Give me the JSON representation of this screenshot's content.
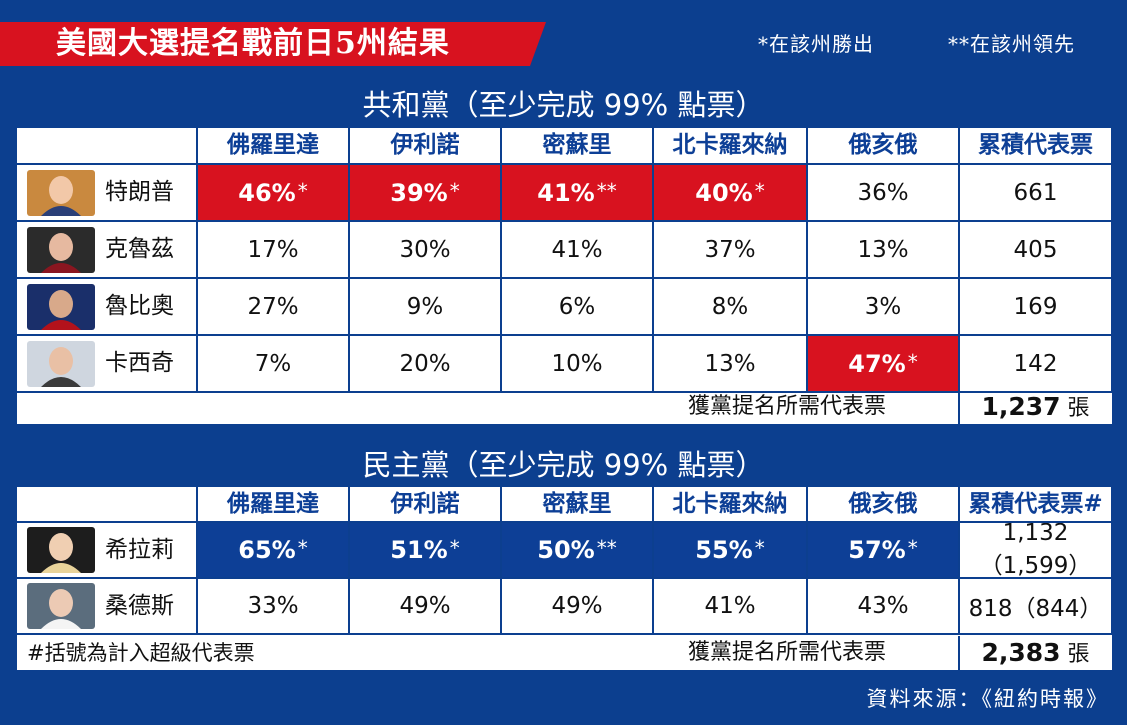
{
  "banner": {
    "title": "美國大選提名戰前日5州結果",
    "legend_win": "*在該州勝出",
    "legend_lead": "**在該州領先"
  },
  "republican": {
    "title": "共和黨（至少完成 99% 點票）",
    "headers": [
      "佛羅里達",
      "伊利諾",
      "密蘇里",
      "北卡羅來納",
      "俄亥俄",
      "累積代表票"
    ],
    "rows": [
      {
        "name": "特朗普",
        "photo": "trump-photo",
        "cells": [
          {
            "v": "46%",
            "s": "*",
            "win": true
          },
          {
            "v": "39%",
            "s": "*",
            "win": true
          },
          {
            "v": "41%",
            "s": "**",
            "win": true
          },
          {
            "v": "40%",
            "s": "*",
            "win": true
          },
          {
            "v": "36%",
            "s": "",
            "win": false
          }
        ],
        "total": "661"
      },
      {
        "name": "克魯茲",
        "photo": "cruz-photo",
        "cells": [
          {
            "v": "17%",
            "s": "",
            "win": false
          },
          {
            "v": "30%",
            "s": "",
            "win": false
          },
          {
            "v": "41%",
            "s": "",
            "win": false
          },
          {
            "v": "37%",
            "s": "",
            "win": false
          },
          {
            "v": "13%",
            "s": "",
            "win": false
          }
        ],
        "total": "405"
      },
      {
        "name": "魯比奧",
        "photo": "rubio-photo",
        "cells": [
          {
            "v": "27%",
            "s": "",
            "win": false
          },
          {
            "v": "9%",
            "s": "",
            "win": false
          },
          {
            "v": "6%",
            "s": "",
            "win": false
          },
          {
            "v": "8%",
            "s": "",
            "win": false
          },
          {
            "v": "3%",
            "s": "",
            "win": false
          }
        ],
        "total": "169"
      },
      {
        "name": "卡西奇",
        "photo": "kasich-photo",
        "cells": [
          {
            "v": "7%",
            "s": "",
            "win": false
          },
          {
            "v": "20%",
            "s": "",
            "win": false
          },
          {
            "v": "10%",
            "s": "",
            "win": false
          },
          {
            "v": "13%",
            "s": "",
            "win": false
          },
          {
            "v": "47%",
            "s": "*",
            "win": true
          }
        ],
        "total": "142"
      }
    ],
    "needed_label": "獲黨提名所需代表票",
    "needed_value": "1,237",
    "needed_unit": "張",
    "win_color": "#d8121f"
  },
  "democratic": {
    "title": "民主黨（至少完成 99% 點票）",
    "headers": [
      "佛羅里達",
      "伊利諾",
      "密蘇里",
      "北卡羅來納",
      "俄亥俄",
      "累積代表票#"
    ],
    "rows": [
      {
        "name": "希拉莉",
        "photo": "clinton-photo",
        "cells": [
          {
            "v": "65%",
            "s": "*",
            "win": true
          },
          {
            "v": "51%",
            "s": "*",
            "win": true
          },
          {
            "v": "50%",
            "s": "**",
            "win": true
          },
          {
            "v": "55%",
            "s": "*",
            "win": true
          },
          {
            "v": "57%",
            "s": "*",
            "win": true
          }
        ],
        "total": "1,132（1,599）"
      },
      {
        "name": "桑德斯",
        "photo": "sanders-photo",
        "cells": [
          {
            "v": "33%",
            "s": "",
            "win": false
          },
          {
            "v": "49%",
            "s": "",
            "win": false
          },
          {
            "v": "49%",
            "s": "",
            "win": false
          },
          {
            "v": "41%",
            "s": "",
            "win": false
          },
          {
            "v": "43%",
            "s": "",
            "win": false
          }
        ],
        "total": "818（844）"
      }
    ],
    "footnote": "#括號為計入超級代表票",
    "needed_label": "獲黨提名所需代表票",
    "needed_value": "2,383",
    "needed_unit": "張",
    "win_color": "#0d3f96"
  },
  "source": "資料來源：《紐約時報》",
  "colors": {
    "background": "#0c3f8f",
    "red": "#d8121f",
    "blue": "#0d3f96"
  }
}
